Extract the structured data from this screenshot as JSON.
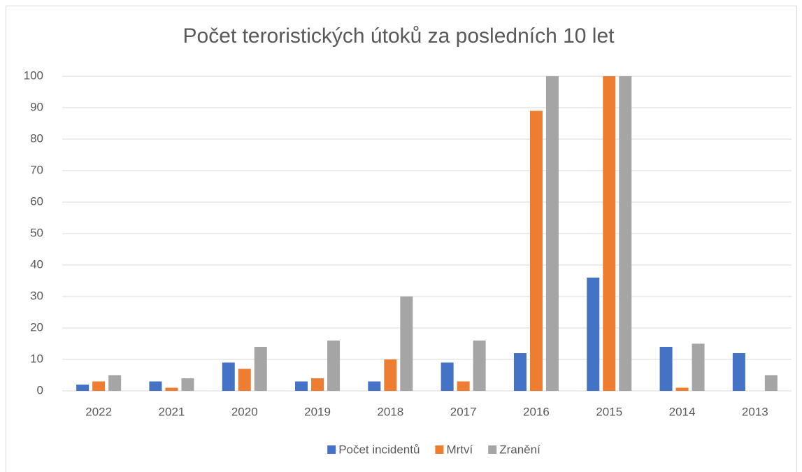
{
  "chart_data": {
    "type": "bar",
    "title": "Počet teroristických útoků za posledních 10 let",
    "categories": [
      "2022",
      "2021",
      "2020",
      "2019",
      "2018",
      "2017",
      "2016",
      "2015",
      "2014",
      "2013"
    ],
    "series": [
      {
        "name": "Počet incidentů",
        "color": "#4472c4",
        "values": [
          2,
          3,
          9,
          3,
          3,
          9,
          12,
          36,
          14,
          12
        ]
      },
      {
        "name": "Mrtví",
        "color": "#ed7d31",
        "values": [
          3,
          1,
          7,
          4,
          10,
          3,
          89,
          100,
          1,
          0
        ]
      },
      {
        "name": "Zranění",
        "color": "#a5a5a5",
        "values": [
          5,
          4,
          14,
          16,
          30,
          16,
          100,
          100,
          15,
          5
        ]
      }
    ],
    "ylim": [
      0,
      100
    ],
    "yticks": [
      0,
      10,
      20,
      30,
      40,
      50,
      60,
      70,
      80,
      90,
      100
    ],
    "grid": true,
    "legend": "bottom"
  }
}
